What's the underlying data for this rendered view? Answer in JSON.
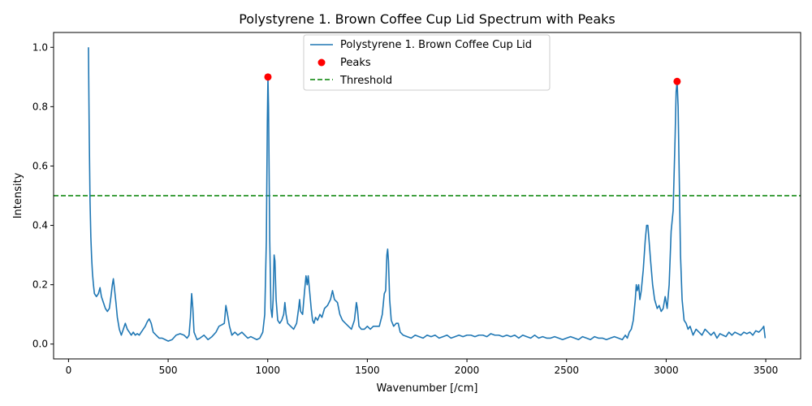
{
  "chart_data": {
    "type": "line",
    "title": "Polystyrene 1. Brown Coffee Cup Lid Spectrum with Peaks",
    "xlabel": "Wavenumber [/cm]",
    "ylabel": "Intensity",
    "xlim": [
      -75,
      3675
    ],
    "ylim": [
      -0.05,
      1.05
    ],
    "xticks": [
      0,
      500,
      1000,
      1500,
      2000,
      2500,
      3000,
      3500
    ],
    "yticks": [
      0.0,
      0.2,
      0.4,
      0.6,
      0.8,
      1.0
    ],
    "grid": false,
    "legend": {
      "placement": "top-center"
    },
    "colors": {
      "spectrum": "#1f77b4",
      "peaks": "#ff0000",
      "threshold": "#008000"
    },
    "series": [
      {
        "name": "Polystyrene 1. Brown Coffee Cup Lid",
        "kind": "line",
        "points": [
          [
            100,
            1.0
          ],
          [
            104,
            0.7
          ],
          [
            108,
            0.48
          ],
          [
            112,
            0.36
          ],
          [
            116,
            0.29
          ],
          [
            120,
            0.24
          ],
          [
            125,
            0.2
          ],
          [
            130,
            0.17
          ],
          [
            140,
            0.16
          ],
          [
            150,
            0.17
          ],
          [
            158,
            0.19
          ],
          [
            165,
            0.16
          ],
          [
            175,
            0.14
          ],
          [
            185,
            0.12
          ],
          [
            195,
            0.11
          ],
          [
            205,
            0.12
          ],
          [
            213,
            0.16
          ],
          [
            220,
            0.2
          ],
          [
            225,
            0.22
          ],
          [
            230,
            0.19
          ],
          [
            238,
            0.14
          ],
          [
            245,
            0.09
          ],
          [
            255,
            0.05
          ],
          [
            265,
            0.03
          ],
          [
            275,
            0.05
          ],
          [
            285,
            0.07
          ],
          [
            295,
            0.05
          ],
          [
            305,
            0.04
          ],
          [
            315,
            0.03
          ],
          [
            325,
            0.04
          ],
          [
            335,
            0.03
          ],
          [
            345,
            0.035
          ],
          [
            355,
            0.03
          ],
          [
            365,
            0.04
          ],
          [
            375,
            0.05
          ],
          [
            385,
            0.06
          ],
          [
            395,
            0.075
          ],
          [
            405,
            0.085
          ],
          [
            415,
            0.07
          ],
          [
            425,
            0.04
          ],
          [
            440,
            0.03
          ],
          [
            455,
            0.02
          ],
          [
            470,
            0.02
          ],
          [
            485,
            0.015
          ],
          [
            500,
            0.01
          ],
          [
            520,
            0.015
          ],
          [
            540,
            0.03
          ],
          [
            560,
            0.035
          ],
          [
            580,
            0.03
          ],
          [
            595,
            0.02
          ],
          [
            605,
            0.03
          ],
          [
            612,
            0.09
          ],
          [
            618,
            0.17
          ],
          [
            624,
            0.12
          ],
          [
            630,
            0.04
          ],
          [
            645,
            0.015
          ],
          [
            660,
            0.02
          ],
          [
            680,
            0.03
          ],
          [
            700,
            0.015
          ],
          [
            720,
            0.025
          ],
          [
            740,
            0.04
          ],
          [
            755,
            0.06
          ],
          [
            770,
            0.065
          ],
          [
            782,
            0.07
          ],
          [
            790,
            0.13
          ],
          [
            798,
            0.1
          ],
          [
            808,
            0.06
          ],
          [
            820,
            0.03
          ],
          [
            835,
            0.04
          ],
          [
            850,
            0.03
          ],
          [
            870,
            0.04
          ],
          [
            885,
            0.03
          ],
          [
            900,
            0.02
          ],
          [
            915,
            0.025
          ],
          [
            930,
            0.02
          ],
          [
            945,
            0.015
          ],
          [
            960,
            0.02
          ],
          [
            975,
            0.04
          ],
          [
            985,
            0.1
          ],
          [
            993,
            0.35
          ],
          [
            998,
            0.75
          ],
          [
            1001,
            0.9
          ],
          [
            1004,
            0.8
          ],
          [
            1010,
            0.35
          ],
          [
            1016,
            0.12
          ],
          [
            1022,
            0.09
          ],
          [
            1027,
            0.15
          ],
          [
            1032,
            0.3
          ],
          [
            1036,
            0.28
          ],
          [
            1042,
            0.15
          ],
          [
            1050,
            0.08
          ],
          [
            1060,
            0.07
          ],
          [
            1070,
            0.08
          ],
          [
            1080,
            0.1
          ],
          [
            1086,
            0.14
          ],
          [
            1092,
            0.1
          ],
          [
            1100,
            0.07
          ],
          [
            1115,
            0.06
          ],
          [
            1130,
            0.05
          ],
          [
            1145,
            0.07
          ],
          [
            1155,
            0.12
          ],
          [
            1160,
            0.15
          ],
          [
            1165,
            0.11
          ],
          [
            1175,
            0.1
          ],
          [
            1185,
            0.18
          ],
          [
            1192,
            0.23
          ],
          [
            1198,
            0.2
          ],
          [
            1203,
            0.23
          ],
          [
            1210,
            0.18
          ],
          [
            1218,
            0.12
          ],
          [
            1225,
            0.08
          ],
          [
            1232,
            0.07
          ],
          [
            1240,
            0.09
          ],
          [
            1250,
            0.08
          ],
          [
            1262,
            0.1
          ],
          [
            1272,
            0.09
          ],
          [
            1285,
            0.12
          ],
          [
            1300,
            0.13
          ],
          [
            1315,
            0.15
          ],
          [
            1325,
            0.18
          ],
          [
            1335,
            0.15
          ],
          [
            1350,
            0.14
          ],
          [
            1362,
            0.1
          ],
          [
            1375,
            0.08
          ],
          [
            1390,
            0.07
          ],
          [
            1405,
            0.06
          ],
          [
            1420,
            0.05
          ],
          [
            1435,
            0.08
          ],
          [
            1445,
            0.14
          ],
          [
            1450,
            0.12
          ],
          [
            1458,
            0.06
          ],
          [
            1470,
            0.05
          ],
          [
            1485,
            0.05
          ],
          [
            1500,
            0.06
          ],
          [
            1515,
            0.05
          ],
          [
            1530,
            0.06
          ],
          [
            1545,
            0.06
          ],
          [
            1560,
            0.06
          ],
          [
            1575,
            0.1
          ],
          [
            1585,
            0.17
          ],
          [
            1592,
            0.18
          ],
          [
            1598,
            0.3
          ],
          [
            1602,
            0.32
          ],
          [
            1606,
            0.28
          ],
          [
            1612,
            0.15
          ],
          [
            1620,
            0.08
          ],
          [
            1632,
            0.06
          ],
          [
            1645,
            0.07
          ],
          [
            1655,
            0.07
          ],
          [
            1665,
            0.04
          ],
          [
            1680,
            0.03
          ],
          [
            1700,
            0.025
          ],
          [
            1720,
            0.02
          ],
          [
            1740,
            0.03
          ],
          [
            1760,
            0.025
          ],
          [
            1780,
            0.02
          ],
          [
            1800,
            0.03
          ],
          [
            1820,
            0.025
          ],
          [
            1840,
            0.03
          ],
          [
            1860,
            0.02
          ],
          [
            1880,
            0.025
          ],
          [
            1900,
            0.03
          ],
          [
            1920,
            0.02
          ],
          [
            1940,
            0.025
          ],
          [
            1960,
            0.03
          ],
          [
            1980,
            0.025
          ],
          [
            2000,
            0.03
          ],
          [
            2020,
            0.03
          ],
          [
            2040,
            0.025
          ],
          [
            2060,
            0.03
          ],
          [
            2080,
            0.03
          ],
          [
            2100,
            0.025
          ],
          [
            2120,
            0.035
          ],
          [
            2140,
            0.03
          ],
          [
            2160,
            0.03
          ],
          [
            2180,
            0.025
          ],
          [
            2200,
            0.03
          ],
          [
            2220,
            0.025
          ],
          [
            2240,
            0.03
          ],
          [
            2260,
            0.02
          ],
          [
            2280,
            0.03
          ],
          [
            2300,
            0.025
          ],
          [
            2320,
            0.02
          ],
          [
            2340,
            0.03
          ],
          [
            2360,
            0.02
          ],
          [
            2380,
            0.025
          ],
          [
            2400,
            0.02
          ],
          [
            2420,
            0.02
          ],
          [
            2440,
            0.025
          ],
          [
            2460,
            0.02
          ],
          [
            2480,
            0.015
          ],
          [
            2500,
            0.02
          ],
          [
            2520,
            0.025
          ],
          [
            2540,
            0.02
          ],
          [
            2560,
            0.015
          ],
          [
            2580,
            0.025
          ],
          [
            2600,
            0.02
          ],
          [
            2620,
            0.015
          ],
          [
            2640,
            0.025
          ],
          [
            2660,
            0.02
          ],
          [
            2680,
            0.02
          ],
          [
            2700,
            0.015
          ],
          [
            2720,
            0.02
          ],
          [
            2740,
            0.025
          ],
          [
            2760,
            0.02
          ],
          [
            2780,
            0.015
          ],
          [
            2795,
            0.03
          ],
          [
            2805,
            0.02
          ],
          [
            2815,
            0.04
          ],
          [
            2825,
            0.05
          ],
          [
            2835,
            0.08
          ],
          [
            2845,
            0.15
          ],
          [
            2850,
            0.2
          ],
          [
            2855,
            0.18
          ],
          [
            2862,
            0.2
          ],
          [
            2868,
            0.15
          ],
          [
            2875,
            0.18
          ],
          [
            2885,
            0.25
          ],
          [
            2895,
            0.35
          ],
          [
            2902,
            0.4
          ],
          [
            2908,
            0.4
          ],
          [
            2914,
            0.35
          ],
          [
            2922,
            0.28
          ],
          [
            2932,
            0.2
          ],
          [
            2942,
            0.15
          ],
          [
            2955,
            0.12
          ],
          [
            2965,
            0.13
          ],
          [
            2975,
            0.11
          ],
          [
            2985,
            0.12
          ],
          [
            2995,
            0.16
          ],
          [
            3005,
            0.12
          ],
          [
            3015,
            0.2
          ],
          [
            3025,
            0.38
          ],
          [
            3035,
            0.45
          ],
          [
            3045,
            0.7
          ],
          [
            3050,
            0.85
          ],
          [
            3055,
            0.885
          ],
          [
            3060,
            0.8
          ],
          [
            3066,
            0.55
          ],
          [
            3072,
            0.3
          ],
          [
            3080,
            0.15
          ],
          [
            3090,
            0.08
          ],
          [
            3100,
            0.07
          ],
          [
            3110,
            0.05
          ],
          [
            3120,
            0.06
          ],
          [
            3135,
            0.03
          ],
          [
            3150,
            0.05
          ],
          [
            3165,
            0.04
          ],
          [
            3180,
            0.03
          ],
          [
            3195,
            0.05
          ],
          [
            3210,
            0.04
          ],
          [
            3225,
            0.03
          ],
          [
            3240,
            0.04
          ],
          [
            3255,
            0.02
          ],
          [
            3270,
            0.035
          ],
          [
            3285,
            0.03
          ],
          [
            3300,
            0.025
          ],
          [
            3315,
            0.04
          ],
          [
            3330,
            0.03
          ],
          [
            3345,
            0.04
          ],
          [
            3360,
            0.035
          ],
          [
            3375,
            0.03
          ],
          [
            3390,
            0.04
          ],
          [
            3405,
            0.035
          ],
          [
            3420,
            0.04
          ],
          [
            3435,
            0.03
          ],
          [
            3450,
            0.045
          ],
          [
            3465,
            0.04
          ],
          [
            3480,
            0.05
          ],
          [
            3490,
            0.06
          ],
          [
            3497,
            0.02
          ]
        ]
      },
      {
        "name": "Peaks",
        "kind": "scatter",
        "points": [
          [
            1001,
            0.9
          ],
          [
            3055,
            0.885
          ]
        ]
      },
      {
        "name": "Threshold",
        "kind": "hline",
        "y": 0.5
      }
    ]
  }
}
